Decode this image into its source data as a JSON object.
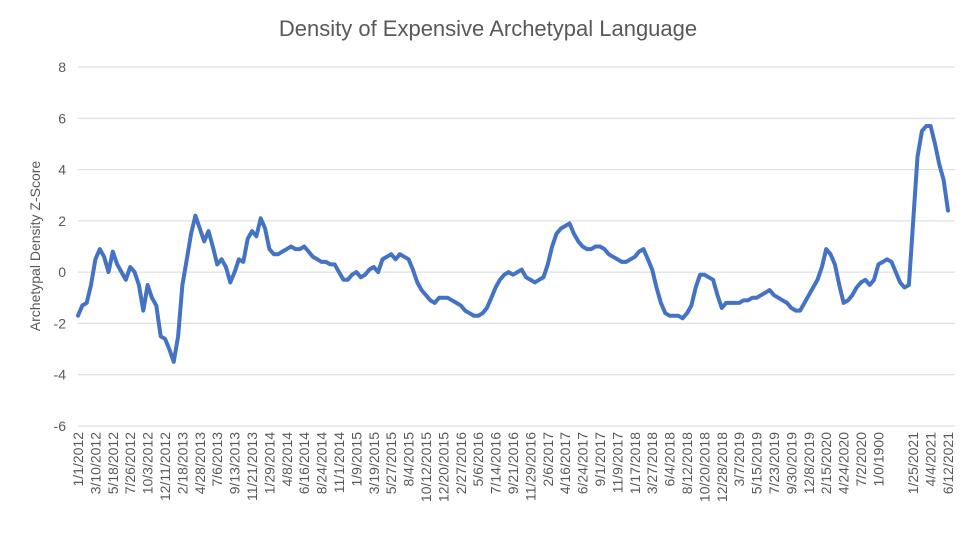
{
  "chart_data": {
    "type": "line",
    "title": "Density of Expensive Archetypal Language",
    "y_label": "Archetypal Density Z-Score",
    "categories": [
      "1/1/2012",
      null,
      null,
      null,
      "3/10/2012",
      null,
      null,
      null,
      "5/18/2012",
      null,
      null,
      null,
      "7/26/2012",
      null,
      null,
      null,
      "10/3/2012",
      null,
      null,
      null,
      "12/11/2012",
      null,
      null,
      null,
      "2/18/2013",
      null,
      null,
      null,
      "4/28/2013",
      null,
      null,
      null,
      "7/6/2013",
      null,
      null,
      null,
      "9/13/2013",
      null,
      null,
      null,
      "11/21/2013",
      null,
      null,
      null,
      "1/29/2014",
      null,
      null,
      null,
      "4/8/2014",
      null,
      null,
      null,
      "6/16/2014",
      null,
      null,
      null,
      "8/24/2014",
      null,
      null,
      null,
      "11/1/2014",
      null,
      null,
      null,
      "1/9/2015",
      null,
      null,
      null,
      "3/19/2015",
      null,
      null,
      null,
      "5/27/2015",
      null,
      null,
      null,
      "8/4/2015",
      null,
      null,
      null,
      "10/12/2015",
      null,
      null,
      null,
      "12/20/2015",
      null,
      null,
      null,
      "2/27/2016",
      null,
      null,
      null,
      "5/6/2016",
      null,
      null,
      null,
      "7/14/2016",
      null,
      null,
      null,
      "9/21/2016",
      null,
      null,
      null,
      "11/29/2016",
      null,
      null,
      null,
      "2/6/2017",
      null,
      null,
      null,
      "4/16/2017",
      null,
      null,
      null,
      "6/24/2017",
      null,
      null,
      null,
      "9/1/2017",
      null,
      null,
      null,
      "11/9/2017",
      null,
      null,
      null,
      "1/17/2018",
      null,
      null,
      null,
      "3/27/2018",
      null,
      null,
      null,
      "6/4/2018",
      null,
      null,
      null,
      "8/12/2018",
      null,
      null,
      null,
      "10/20/2018",
      null,
      null,
      null,
      "12/28/2018",
      null,
      null,
      null,
      "3/7/2019",
      null,
      null,
      null,
      "5/15/2019",
      null,
      null,
      null,
      "7/23/2019",
      null,
      null,
      null,
      "9/30/2019",
      null,
      null,
      null,
      "12/8/2019",
      null,
      null,
      null,
      "2/15/2020",
      null,
      null,
      null,
      "4/24/2020",
      null,
      null,
      null,
      "7/2/2020",
      null,
      null,
      null,
      "1/0/1900",
      null,
      null,
      null,
      null,
      null,
      null,
      null,
      "1/25/2021",
      null,
      null,
      null,
      "4/4/2021",
      null,
      null,
      null,
      "6/12/2021"
    ],
    "values": [
      -1.7,
      -1.3,
      -1.2,
      -0.5,
      0.5,
      0.9,
      0.6,
      0.0,
      0.8,
      0.3,
      0.0,
      -0.3,
      0.2,
      0.0,
      -0.5,
      -1.5,
      -0.5,
      -1.0,
      -1.3,
      -2.5,
      -2.6,
      -3.0,
      -3.5,
      -2.5,
      -0.5,
      0.5,
      1.5,
      2.2,
      1.7,
      1.2,
      1.6,
      1.0,
      0.3,
      0.5,
      0.2,
      -0.4,
      0.0,
      0.5,
      0.4,
      1.3,
      1.6,
      1.4,
      2.1,
      1.7,
      0.9,
      0.7,
      0.7,
      0.8,
      0.9,
      1.0,
      0.9,
      0.9,
      1.0,
      0.8,
      0.6,
      0.5,
      0.4,
      0.4,
      0.3,
      0.3,
      0.0,
      -0.3,
      -0.3,
      -0.1,
      0.0,
      -0.2,
      -0.1,
      0.1,
      0.2,
      0.0,
      0.5,
      0.6,
      0.7,
      0.5,
      0.7,
      0.6,
      0.5,
      0.1,
      -0.4,
      -0.7,
      -0.9,
      -1.1,
      -1.2,
      -1.0,
      -1.0,
      -1.0,
      -1.1,
      -1.2,
      -1.3,
      -1.5,
      -1.6,
      -1.7,
      -1.7,
      -1.6,
      -1.4,
      -1.0,
      -0.6,
      -0.3,
      -0.1,
      0.0,
      -0.1,
      0.0,
      0.1,
      -0.2,
      -0.3,
      -0.4,
      -0.3,
      -0.2,
      0.3,
      1.0,
      1.5,
      1.7,
      1.8,
      1.9,
      1.5,
      1.2,
      1.0,
      0.9,
      0.9,
      1.0,
      1.0,
      0.9,
      0.7,
      0.6,
      0.5,
      0.4,
      0.4,
      0.5,
      0.6,
      0.8,
      0.9,
      0.5,
      0.1,
      -0.6,
      -1.2,
      -1.6,
      -1.7,
      -1.7,
      -1.7,
      -1.8,
      -1.6,
      -1.3,
      -0.6,
      -0.1,
      -0.1,
      -0.2,
      -0.3,
      -0.9,
      -1.4,
      -1.2,
      -1.2,
      -1.2,
      -1.2,
      -1.1,
      -1.1,
      -1.0,
      -1.0,
      -0.9,
      -0.8,
      -0.7,
      -0.9,
      -1.0,
      -1.1,
      -1.2,
      -1.4,
      -1.5,
      -1.5,
      -1.2,
      -0.9,
      -0.6,
      -0.3,
      0.2,
      0.9,
      0.7,
      0.3,
      -0.5,
      -1.2,
      -1.1,
      -0.9,
      -0.6,
      -0.4,
      -0.3,
      -0.5,
      -0.3,
      0.3,
      0.4,
      0.5,
      0.4,
      0.0,
      -0.4,
      -0.6,
      -0.5,
      2.0,
      4.5,
      5.5,
      5.7,
      5.7,
      5.0,
      4.2,
      3.6,
      2.4
    ],
    "color": "#4472c4",
    "ylim": [
      -6,
      8
    ],
    "yticks": [
      -6,
      -4,
      -2,
      0,
      2,
      4,
      6,
      8
    ],
    "grid": true
  }
}
